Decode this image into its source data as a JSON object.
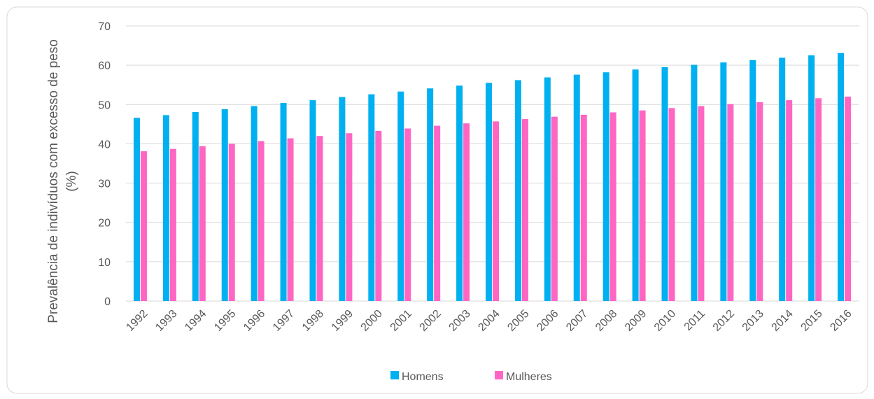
{
  "chart_data": {
    "type": "bar",
    "ylabel": "Prevalência de indivíduos com excesso de peso (%)",
    "categories": [
      "1992",
      "1993",
      "1994",
      "1995",
      "1996",
      "1997",
      "1998",
      "1999",
      "2000",
      "2001",
      "2002",
      "2003",
      "2004",
      "2005",
      "2006",
      "2007",
      "2008",
      "2009",
      "2010",
      "2011",
      "2012",
      "2013",
      "2014",
      "2015",
      "2016"
    ],
    "series": [
      {
        "name": "Homens",
        "color": "#00b0f0",
        "values": [
          46.6,
          47.3,
          48.1,
          48.8,
          49.6,
          50.4,
          51.1,
          51.9,
          52.6,
          53.3,
          54.1,
          54.8,
          55.5,
          56.2,
          56.9,
          57.6,
          58.2,
          58.9,
          59.5,
          60.1,
          60.7,
          61.3,
          61.9,
          62.5,
          63.1
        ]
      },
      {
        "name": "Mulheres",
        "color": "#ff66c4",
        "values": [
          38.1,
          38.7,
          39.4,
          40.0,
          40.7,
          41.4,
          42.0,
          42.7,
          43.3,
          43.9,
          44.6,
          45.2,
          45.7,
          46.3,
          46.9,
          47.4,
          48.0,
          48.5,
          49.1,
          49.6,
          50.1,
          50.6,
          51.1,
          51.6,
          52.0
        ]
      }
    ],
    "ylim": [
      0,
      70
    ],
    "yticks": [
      0,
      10,
      20,
      30,
      40,
      50,
      60,
      70
    ],
    "grid": true,
    "legend": "bottom"
  }
}
